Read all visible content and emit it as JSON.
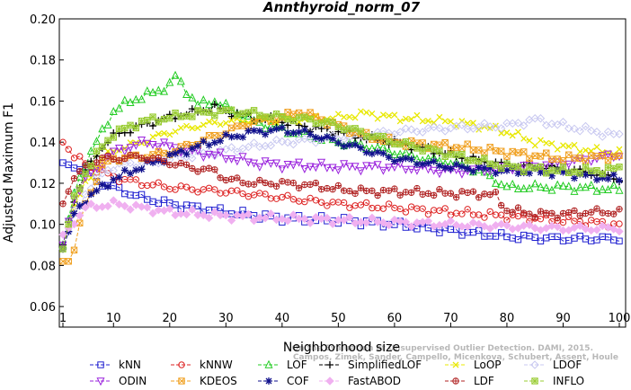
{
  "chart_data": {
    "type": "line",
    "title": "Annthyroid_norm_07",
    "xlabel": "Neighborhood size",
    "ylabel": "Adjusted Maximum F1",
    "xlim": [
      1,
      100
    ],
    "ylim": [
      0.05,
      0.2
    ],
    "xticks": [
      "1",
      "10",
      "20",
      "30",
      "40",
      "50",
      "60",
      "70",
      "80",
      "90",
      "100"
    ],
    "yticks": [
      "0.06",
      "0.08",
      "0.10",
      "0.12",
      "0.14",
      "0.16",
      "0.18",
      "0.20"
    ],
    "grid": false,
    "legend_position": "bottom",
    "watermark_lines": [
      "Campos, Zimek, Sander, Campello, Micenkova, Schubert, Assent, Houle",
      "On the Evaluation of Unsupervised Outlier Detection. DAMI, 2015."
    ],
    "series": [
      {
        "name": "kNN",
        "color": "#1f1fd0",
        "marker": "square",
        "points": [
          [
            1,
            0.13
          ],
          [
            2,
            0.129
          ],
          [
            5,
            0.127
          ],
          [
            7,
            0.121
          ],
          [
            10,
            0.118
          ],
          [
            15,
            0.113
          ],
          [
            20,
            0.11
          ],
          [
            25,
            0.108
          ],
          [
            30,
            0.106
          ],
          [
            40,
            0.103
          ],
          [
            50,
            0.102
          ],
          [
            60,
            0.1
          ],
          [
            70,
            0.097
          ],
          [
            80,
            0.094
          ],
          [
            90,
            0.093
          ],
          [
            100,
            0.093
          ]
        ]
      },
      {
        "name": "kNNW",
        "color": "#dd2222",
        "marker": "circle",
        "points": [
          [
            1,
            0.14
          ],
          [
            3,
            0.133
          ],
          [
            6,
            0.128
          ],
          [
            10,
            0.123
          ],
          [
            15,
            0.12
          ],
          [
            20,
            0.118
          ],
          [
            30,
            0.116
          ],
          [
            40,
            0.113
          ],
          [
            50,
            0.11
          ],
          [
            60,
            0.108
          ],
          [
            70,
            0.106
          ],
          [
            80,
            0.104
          ],
          [
            90,
            0.102
          ],
          [
            100,
            0.1
          ]
        ]
      },
      {
        "name": "LOF",
        "color": "#22cc22",
        "marker": "triangle",
        "points": [
          [
            1,
            0.09
          ],
          [
            3,
            0.115
          ],
          [
            5,
            0.13
          ],
          [
            8,
            0.145
          ],
          [
            10,
            0.155
          ],
          [
            13,
            0.16
          ],
          [
            15,
            0.162
          ],
          [
            18,
            0.165
          ],
          [
            20,
            0.168
          ],
          [
            21,
            0.172
          ],
          [
            23,
            0.165
          ],
          [
            25,
            0.158
          ],
          [
            28,
            0.16
          ],
          [
            30,
            0.157
          ],
          [
            35,
            0.15
          ],
          [
            40,
            0.146
          ],
          [
            45,
            0.143
          ],
          [
            50,
            0.14
          ],
          [
            55,
            0.138
          ],
          [
            60,
            0.135
          ],
          [
            65,
            0.132
          ],
          [
            70,
            0.13
          ],
          [
            75,
            0.126
          ],
          [
            77,
            0.123
          ],
          [
            80,
            0.118
          ],
          [
            90,
            0.118
          ],
          [
            100,
            0.117
          ]
        ]
      },
      {
        "name": "SimplifiedLOF",
        "color": "#000000",
        "marker": "plus",
        "points": [
          [
            1,
            0.09
          ],
          [
            3,
            0.112
          ],
          [
            5,
            0.125
          ],
          [
            8,
            0.138
          ],
          [
            10,
            0.143
          ],
          [
            15,
            0.148
          ],
          [
            20,
            0.152
          ],
          [
            25,
            0.155
          ],
          [
            28,
            0.157
          ],
          [
            30,
            0.155
          ],
          [
            35,
            0.152
          ],
          [
            40,
            0.15
          ],
          [
            45,
            0.147
          ],
          [
            50,
            0.145
          ],
          [
            55,
            0.142
          ],
          [
            60,
            0.14
          ],
          [
            65,
            0.137
          ],
          [
            70,
            0.134
          ],
          [
            75,
            0.131
          ],
          [
            80,
            0.129
          ],
          [
            85,
            0.128
          ],
          [
            90,
            0.127
          ],
          [
            95,
            0.125
          ],
          [
            100,
            0.122
          ]
        ]
      },
      {
        "name": "LoOP",
        "color": "#e8e800",
        "marker": "cross",
        "points": [
          [
            1,
            0.088
          ],
          [
            3,
            0.108
          ],
          [
            5,
            0.12
          ],
          [
            8,
            0.132
          ],
          [
            10,
            0.136
          ],
          [
            15,
            0.14
          ],
          [
            20,
            0.145
          ],
          [
            25,
            0.148
          ],
          [
            30,
            0.15
          ],
          [
            40,
            0.151
          ],
          [
            50,
            0.152
          ],
          [
            55,
            0.154
          ],
          [
            60,
            0.152
          ],
          [
            70,
            0.15
          ],
          [
            75,
            0.148
          ],
          [
            80,
            0.145
          ],
          [
            85,
            0.14
          ],
          [
            90,
            0.138
          ],
          [
            95,
            0.136
          ],
          [
            100,
            0.135
          ]
        ]
      },
      {
        "name": "LDOF",
        "color": "#c8c8f0",
        "marker": "diamond",
        "points": [
          [
            1,
            0.088
          ],
          [
            3,
            0.105
          ],
          [
            5,
            0.115
          ],
          [
            8,
            0.125
          ],
          [
            10,
            0.128
          ],
          [
            20,
            0.132
          ],
          [
            30,
            0.136
          ],
          [
            40,
            0.14
          ],
          [
            50,
            0.142
          ],
          [
            60,
            0.145
          ],
          [
            70,
            0.147
          ],
          [
            80,
            0.148
          ],
          [
            85,
            0.151
          ],
          [
            90,
            0.148
          ],
          [
            100,
            0.143
          ]
        ]
      },
      {
        "name": "ODIN",
        "color": "#9a22dd",
        "marker": "triangle-down",
        "points": [
          [
            1,
            0.09
          ],
          [
            3,
            0.113
          ],
          [
            5,
            0.122
          ],
          [
            8,
            0.13
          ],
          [
            10,
            0.135
          ],
          [
            13,
            0.138
          ],
          [
            16,
            0.14
          ],
          [
            20,
            0.138
          ],
          [
            25,
            0.135
          ],
          [
            30,
            0.133
          ],
          [
            35,
            0.13
          ],
          [
            40,
            0.129
          ],
          [
            50,
            0.128
          ],
          [
            60,
            0.128
          ],
          [
            70,
            0.126
          ],
          [
            80,
            0.127
          ],
          [
            90,
            0.13
          ],
          [
            100,
            0.134
          ]
        ]
      },
      {
        "name": "KDEOS",
        "color": "#f0a020",
        "marker": "square-x",
        "points": [
          [
            1,
            0.082
          ],
          [
            2,
            0.082
          ],
          [
            3,
            0.088
          ],
          [
            5,
            0.11
          ],
          [
            8,
            0.128
          ],
          [
            10,
            0.132
          ],
          [
            15,
            0.133
          ],
          [
            20,
            0.135
          ],
          [
            25,
            0.14
          ],
          [
            30,
            0.145
          ],
          [
            35,
            0.15
          ],
          [
            40,
            0.152
          ],
          [
            43,
            0.155
          ],
          [
            45,
            0.153
          ],
          [
            50,
            0.148
          ],
          [
            55,
            0.143
          ],
          [
            60,
            0.14
          ],
          [
            70,
            0.138
          ],
          [
            80,
            0.135
          ],
          [
            90,
            0.132
          ],
          [
            100,
            0.133
          ]
        ]
      },
      {
        "name": "COF",
        "color": "#10108c",
        "marker": "asterisk",
        "points": [
          [
            1,
            0.088
          ],
          [
            3,
            0.105
          ],
          [
            5,
            0.112
          ],
          [
            8,
            0.118
          ],
          [
            10,
            0.122
          ],
          [
            15,
            0.128
          ],
          [
            20,
            0.133
          ],
          [
            25,
            0.138
          ],
          [
            30,
            0.142
          ],
          [
            35,
            0.145
          ],
          [
            40,
            0.146
          ],
          [
            45,
            0.144
          ],
          [
            50,
            0.14
          ],
          [
            55,
            0.136
          ],
          [
            60,
            0.132
          ],
          [
            70,
            0.128
          ],
          [
            80,
            0.126
          ],
          [
            90,
            0.125
          ],
          [
            100,
            0.122
          ]
        ]
      },
      {
        "name": "FastABOD",
        "color": "#f0b0f0",
        "marker": "diamond-filled",
        "points": [
          [
            1,
            0.095
          ],
          [
            5,
            0.108
          ],
          [
            10,
            0.11
          ],
          [
            20,
            0.106
          ],
          [
            30,
            0.104
          ],
          [
            40,
            0.103
          ],
          [
            50,
            0.102
          ],
          [
            60,
            0.101
          ],
          [
            70,
            0.1
          ],
          [
            80,
            0.099
          ],
          [
            90,
            0.098
          ],
          [
            100,
            0.098
          ]
        ]
      },
      {
        "name": "LDF",
        "color": "#b02222",
        "marker": "circle-plus",
        "points": [
          [
            1,
            0.11
          ],
          [
            3,
            0.122
          ],
          [
            5,
            0.128
          ],
          [
            8,
            0.132
          ],
          [
            10,
            0.132
          ],
          [
            15,
            0.133
          ],
          [
            20,
            0.13
          ],
          [
            25,
            0.127
          ],
          [
            28,
            0.126
          ],
          [
            30,
            0.122
          ],
          [
            35,
            0.12
          ],
          [
            40,
            0.12
          ],
          [
            45,
            0.119
          ],
          [
            48,
            0.118
          ],
          [
            50,
            0.117
          ],
          [
            55,
            0.116
          ],
          [
            60,
            0.116
          ],
          [
            70,
            0.115
          ],
          [
            75,
            0.115
          ],
          [
            78,
            0.114
          ],
          [
            80,
            0.107
          ],
          [
            85,
            0.105
          ],
          [
            90,
            0.105
          ],
          [
            95,
            0.106
          ],
          [
            100,
            0.106
          ]
        ]
      },
      {
        "name": "INFLO",
        "color": "#99cc33",
        "marker": "square-star",
        "points": [
          [
            1,
            0.088
          ],
          [
            3,
            0.112
          ],
          [
            5,
            0.125
          ],
          [
            8,
            0.138
          ],
          [
            10,
            0.144
          ],
          [
            15,
            0.15
          ],
          [
            20,
            0.152
          ],
          [
            25,
            0.154
          ],
          [
            30,
            0.155
          ],
          [
            35,
            0.154
          ],
          [
            40,
            0.152
          ],
          [
            45,
            0.151
          ],
          [
            50,
            0.148
          ],
          [
            55,
            0.144
          ],
          [
            60,
            0.14
          ],
          [
            65,
            0.137
          ],
          [
            70,
            0.134
          ],
          [
            75,
            0.131
          ],
          [
            80,
            0.128
          ],
          [
            85,
            0.127
          ],
          [
            90,
            0.126
          ],
          [
            95,
            0.126
          ],
          [
            100,
            0.127
          ]
        ]
      }
    ]
  }
}
